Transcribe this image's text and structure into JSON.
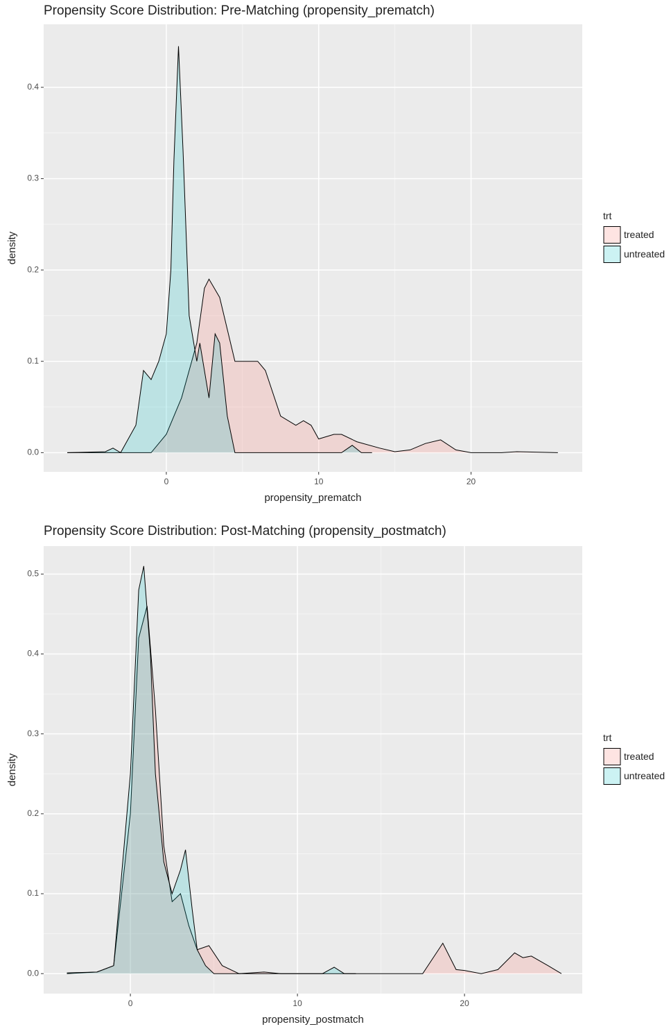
{
  "chart_data": [
    {
      "type": "area",
      "title": "Propensity Score Distribution: Pre-Matching (propensity_prematch)",
      "x_label": "propensity_prematch",
      "y_label": "density",
      "legend_title": "trt",
      "legend": "right",
      "grid": true,
      "fill_opacity": 0.2,
      "xlim": [
        -8.05,
        27.3
      ],
      "ylim": [
        -0.021,
        0.469
      ],
      "xticks": [
        0,
        10,
        20
      ],
      "yticks": [
        {
          "value": 0,
          "label": "0.0"
        },
        0.1,
        0.2,
        0.3,
        0.4
      ],
      "series": [
        {
          "name": "treated",
          "color": "#f8766d",
          "x": [
            -6.5,
            -1,
            0,
            1,
            2,
            2.5,
            2.8,
            3.5,
            4.5,
            5.5,
            6,
            6.5,
            7.5,
            8.5,
            9,
            9.5,
            10,
            11,
            11.5,
            12.5,
            14,
            15,
            16,
            17,
            18,
            19,
            20,
            22,
            23,
            25.7
          ],
          "values": [
            0,
            0,
            0.02,
            0.06,
            0.12,
            0.18,
            0.19,
            0.17,
            0.1,
            0.1,
            0.1,
            0.09,
            0.04,
            0.03,
            0.035,
            0.03,
            0.015,
            0.02,
            0.02,
            0.012,
            0.005,
            0.001,
            0.003,
            0.01,
            0.014,
            0.003,
            0,
            0,
            0.001,
            0
          ]
        },
        {
          "name": "untreated",
          "color": "#00bfc4",
          "x": [
            -6.5,
            -4,
            -3.5,
            -3,
            -2,
            -1.5,
            -1,
            -0.5,
            0,
            0.3,
            0.5,
            0.8,
            1.1,
            1.5,
            2,
            2.2,
            2.5,
            2.8,
            3.2,
            3.5,
            4,
            4.5,
            11.5,
            12.2,
            12.8,
            13.5
          ],
          "values": [
            0,
            0.001,
            0.005,
            0,
            0.03,
            0.09,
            0.08,
            0.1,
            0.13,
            0.2,
            0.32,
            0.445,
            0.33,
            0.15,
            0.1,
            0.12,
            0.09,
            0.06,
            0.13,
            0.12,
            0.04,
            0,
            0,
            0.008,
            0,
            0
          ]
        }
      ]
    },
    {
      "type": "area",
      "title": "Propensity Score Distribution: Post-Matching (propensity_postmatch)",
      "x_label": "propensity_postmatch",
      "y_label": "density",
      "legend_title": "trt",
      "legend": "right",
      "grid": true,
      "fill_opacity": 0.2,
      "xlim": [
        -5.19,
        27.05
      ],
      "ylim": [
        -0.025,
        0.535
      ],
      "xticks": [
        0,
        10,
        20
      ],
      "yticks": [
        {
          "value": 0,
          "label": "0.0"
        },
        0.1,
        0.2,
        0.3,
        0.4,
        0.5
      ],
      "series": [
        {
          "name": "treated",
          "color": "#f8766d",
          "x": [
            -3.8,
            -2,
            -1,
            0,
            0.5,
            1,
            1.5,
            2,
            2.5,
            3,
            3.5,
            4,
            4.7,
            5.5,
            6.5,
            8,
            9,
            17.5,
            18.7,
            19.5,
            20,
            21,
            22,
            23,
            23.5,
            24,
            25,
            25.8
          ],
          "values": [
            0,
            0.002,
            0.01,
            0.2,
            0.42,
            0.46,
            0.33,
            0.16,
            0.09,
            0.1,
            0.06,
            0.03,
            0.035,
            0.01,
            0,
            0.002,
            0,
            0,
            0.038,
            0.005,
            0.004,
            0,
            0.005,
            0.026,
            0.02,
            0.022,
            0.01,
            0
          ]
        },
        {
          "name": "untreated",
          "color": "#00bfc4",
          "x": [
            -3.8,
            -2,
            -1,
            0,
            0.5,
            0.8,
            1.2,
            1.5,
            2,
            2.5,
            3,
            3.3,
            3.7,
            4,
            4.5,
            5,
            11.5,
            12.2,
            12.8,
            13.5
          ],
          "values": [
            0.001,
            0.002,
            0.01,
            0.25,
            0.48,
            0.51,
            0.4,
            0.25,
            0.14,
            0.1,
            0.13,
            0.155,
            0.08,
            0.03,
            0.01,
            0,
            0,
            0.008,
            0,
            0
          ]
        }
      ]
    }
  ]
}
